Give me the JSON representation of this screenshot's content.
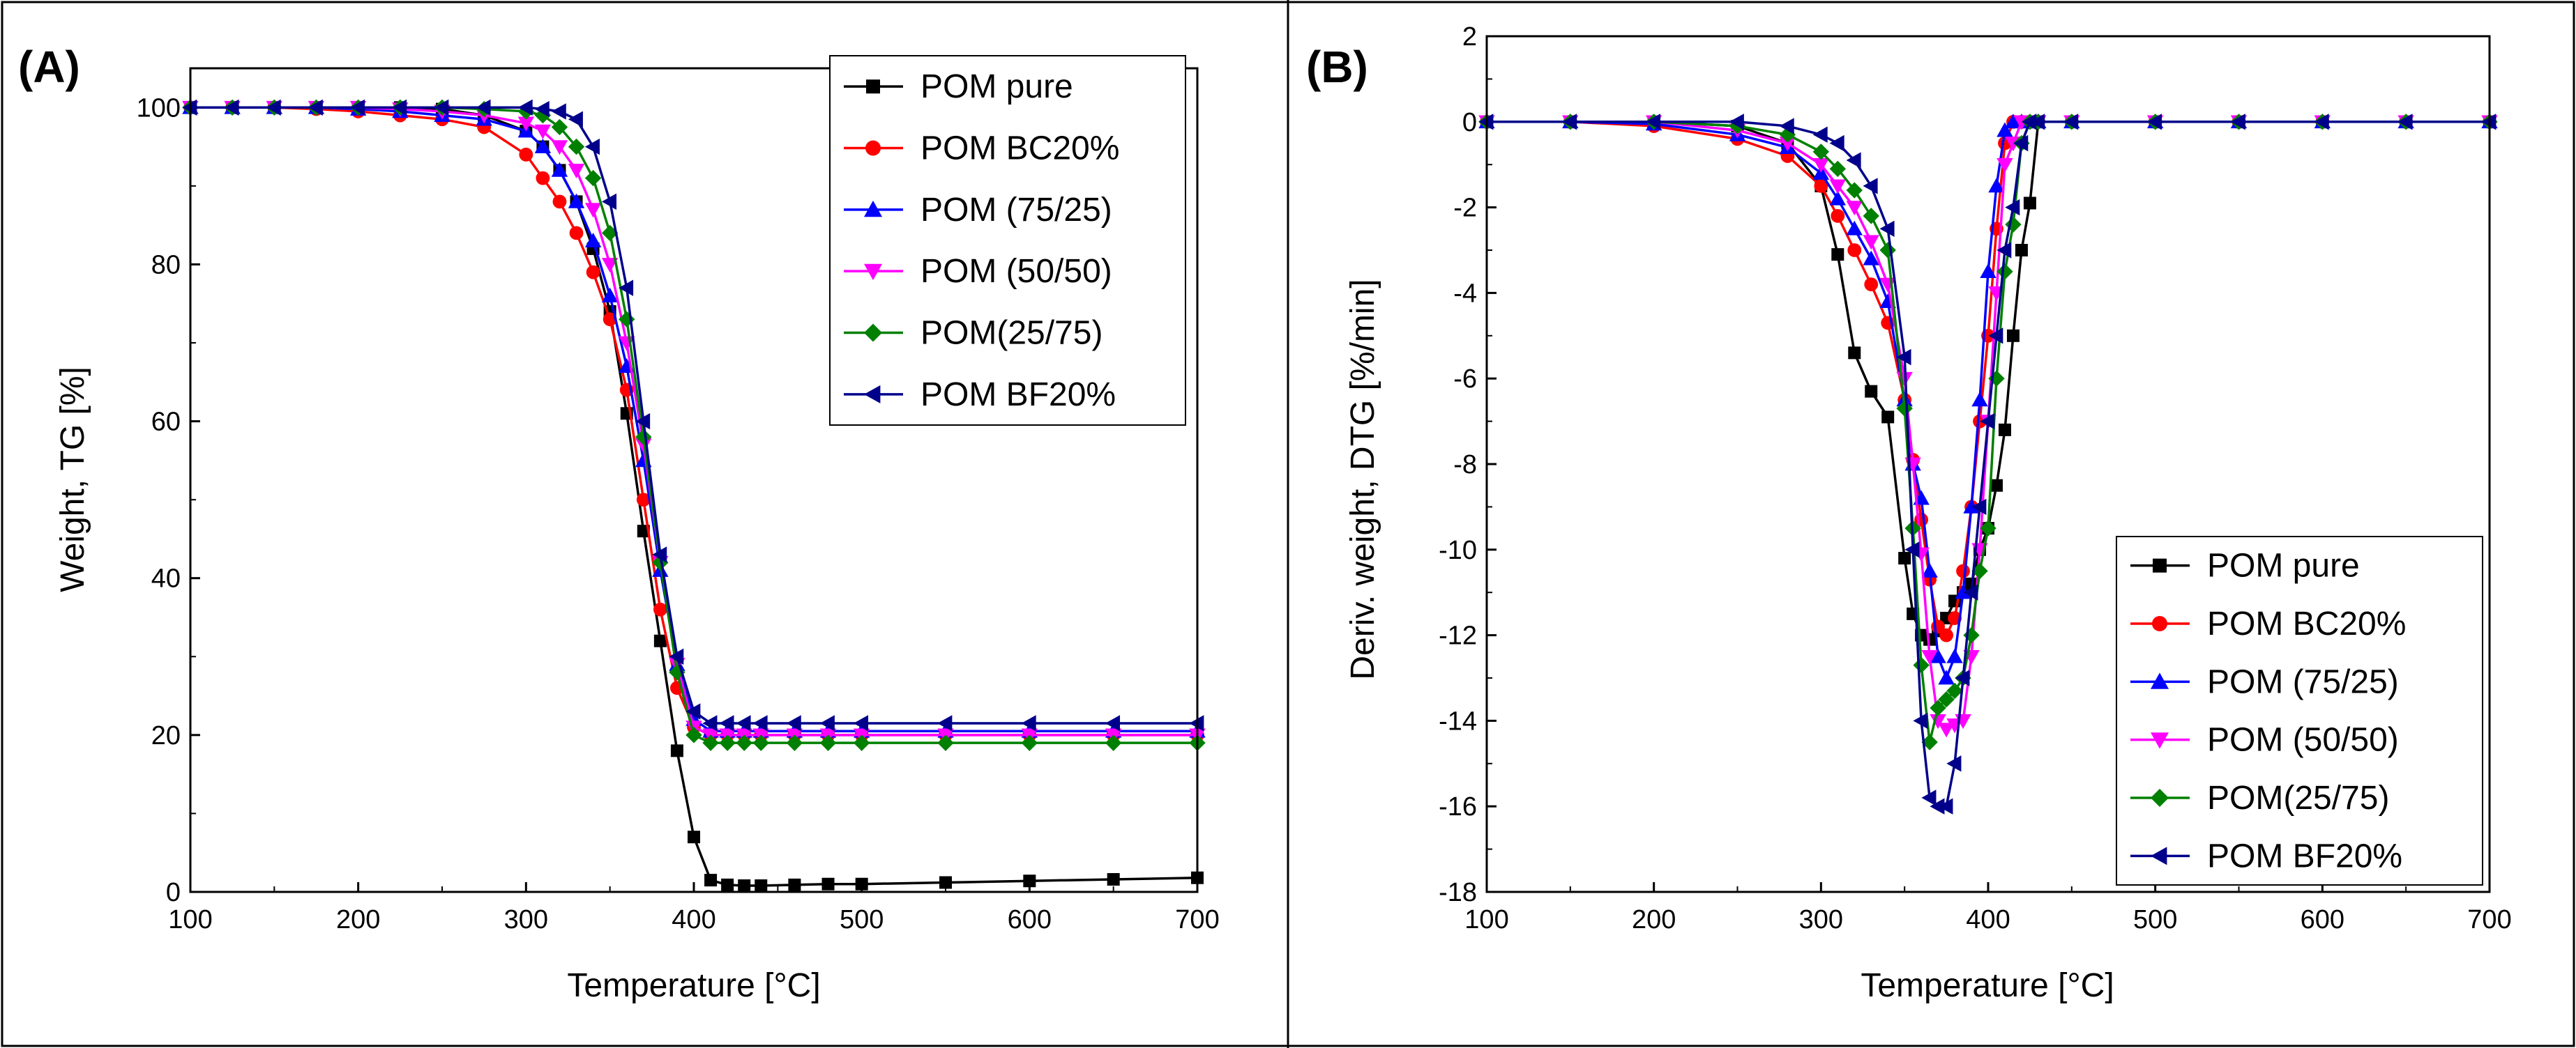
{
  "chart_data": [
    {
      "panel_label": "(A)",
      "type": "line",
      "xlabel": "Temperature [°C]",
      "ylabel": "Weight, TG [%]",
      "xlim": [
        100,
        700
      ],
      "ylim": [
        0,
        105
      ],
      "xticks": [
        100,
        200,
        300,
        400,
        500,
        600,
        700
      ],
      "yticks": [
        0,
        20,
        40,
        60,
        80,
        100
      ],
      "legend_position": "top-right",
      "x": [
        100,
        125,
        150,
        175,
        200,
        225,
        250,
        275,
        300,
        310,
        320,
        330,
        340,
        350,
        360,
        370,
        380,
        390,
        400,
        410,
        420,
        430,
        440,
        460,
        480,
        500,
        550,
        600,
        650,
        700
      ],
      "series": [
        {
          "name": "POM pure",
          "color": "#000000",
          "marker": "square",
          "values": [
            100,
            100,
            100,
            100,
            100,
            100,
            99.8,
            99,
            97,
            95,
            92,
            88,
            82,
            74,
            61,
            46,
            32,
            18,
            7,
            1.5,
            0.9,
            0.8,
            0.8,
            0.9,
            1.0,
            1.0,
            1.2,
            1.4,
            1.6,
            1.8
          ]
        },
        {
          "name": "POM BC20%",
          "color": "#ff0000",
          "marker": "circle",
          "values": [
            100,
            100,
            100,
            99.8,
            99.5,
            99,
            98.5,
            97.5,
            94,
            91,
            88,
            84,
            79,
            73,
            64,
            50,
            36,
            26,
            21,
            20,
            20,
            20,
            20,
            20,
            20,
            20,
            20,
            20,
            20,
            20
          ]
        },
        {
          "name": "POM (75/25)",
          "color": "#0000ff",
          "marker": "triangle-up",
          "values": [
            100,
            100,
            100,
            100,
            99.8,
            99.5,
            99,
            98.5,
            97,
            95,
            92,
            88,
            83,
            76,
            67,
            55,
            41,
            29,
            22,
            20.5,
            20.5,
            20.5,
            20.5,
            20.5,
            20.5,
            20.5,
            20.5,
            20.5,
            20.5,
            20.5
          ]
        },
        {
          "name": "POM (50/50)",
          "color": "#ff00ff",
          "marker": "triangle-down",
          "values": [
            100,
            100,
            100,
            100,
            100,
            99.8,
            99.5,
            99,
            98,
            97,
            95,
            92,
            87,
            80,
            70,
            57,
            42,
            29,
            21,
            20,
            20,
            20,
            20,
            20,
            20,
            20,
            20,
            20,
            20,
            20
          ]
        },
        {
          "name": "POM(25/75)",
          "color": "#008000",
          "marker": "diamond",
          "values": [
            100,
            100,
            100,
            100,
            100,
            100,
            100,
            99.8,
            99.5,
            99,
            97.5,
            95,
            91,
            84,
            73,
            58,
            42,
            28,
            20,
            19,
            19,
            19,
            19,
            19,
            19,
            19,
            19,
            19,
            19,
            19
          ]
        },
        {
          "name": "POM BF20%",
          "color": "#00008b",
          "marker": "triangle-left",
          "values": [
            100,
            100,
            100,
            100,
            100,
            100,
            100,
            100,
            100,
            99.8,
            99.5,
            98.5,
            95,
            88,
            77,
            60,
            43,
            30,
            23,
            21.5,
            21.5,
            21.5,
            21.5,
            21.5,
            21.5,
            21.5,
            21.5,
            21.5,
            21.5,
            21.5
          ]
        }
      ]
    },
    {
      "panel_label": "(B)",
      "type": "line",
      "xlabel": "Temperature [°C]",
      "ylabel": "Deriv. weight, DTG [%/min]",
      "xlim": [
        100,
        700
      ],
      "ylim": [
        -18,
        2
      ],
      "xticks": [
        100,
        200,
        300,
        400,
        500,
        600,
        700
      ],
      "yticks": [
        -18,
        -16,
        -14,
        -12,
        -10,
        -8,
        -6,
        -4,
        -2,
        0,
        2
      ],
      "legend_position": "bottom-right",
      "x": [
        100,
        150,
        200,
        250,
        280,
        300,
        310,
        320,
        330,
        340,
        350,
        355,
        360,
        365,
        370,
        375,
        380,
        385,
        390,
        395,
        400,
        405,
        410,
        415,
        420,
        425,
        430,
        450,
        500,
        550,
        600,
        650,
        700
      ],
      "series": [
        {
          "name": "POM pure",
          "color": "#000000",
          "marker": "square",
          "values": [
            0,
            0,
            0,
            -0.1,
            -0.5,
            -1.5,
            -3.1,
            -5.4,
            -6.3,
            -6.9,
            -10.2,
            -11.5,
            -12.0,
            -12.1,
            -11.9,
            -11.6,
            -11.2,
            -11.0,
            -10.8,
            -10.0,
            -9.5,
            -8.5,
            -7.2,
            -5.0,
            -3.0,
            -1.9,
            0,
            0,
            0,
            0,
            0,
            0,
            0
          ]
        },
        {
          "name": "POM BC20%",
          "color": "#ff0000",
          "marker": "circle",
          "values": [
            0,
            0,
            -0.1,
            -0.4,
            -0.8,
            -1.5,
            -2.2,
            -3.0,
            -3.8,
            -4.7,
            -6.5,
            -7.9,
            -9.3,
            -10.7,
            -11.8,
            -12.0,
            -11.6,
            -10.5,
            -9.0,
            -7.0,
            -5.0,
            -2.5,
            -0.5,
            0,
            0,
            0,
            0,
            0,
            0,
            0,
            0,
            0,
            0
          ]
        },
        {
          "name": "POM (75/25)",
          "color": "#0000ff",
          "marker": "triangle-up",
          "values": [
            0,
            0,
            -0.05,
            -0.3,
            -0.6,
            -1.2,
            -1.8,
            -2.5,
            -3.2,
            -4.2,
            -6.5,
            -8.0,
            -8.8,
            -10.5,
            -12.5,
            -13.0,
            -12.5,
            -11.0,
            -9.0,
            -6.5,
            -3.5,
            -1.5,
            -0.2,
            0,
            0,
            0,
            0,
            0,
            0,
            0,
            0,
            0,
            0
          ]
        },
        {
          "name": "POM (50/50)",
          "color": "#ff00ff",
          "marker": "triangle-down",
          "values": [
            0,
            0,
            0,
            -0.2,
            -0.5,
            -1.0,
            -1.5,
            -2.0,
            -2.8,
            -3.8,
            -6.0,
            -8.0,
            -10.1,
            -12.5,
            -14.0,
            -14.2,
            -14.1,
            -14.0,
            -12.5,
            -10.0,
            -7.0,
            -4.0,
            -1.0,
            -0.5,
            0,
            0,
            0,
            0,
            0,
            0,
            0,
            0,
            0
          ]
        },
        {
          "name": "POM(25/75)",
          "color": "#008000",
          "marker": "diamond",
          "values": [
            0,
            0,
            0,
            -0.1,
            -0.3,
            -0.7,
            -1.1,
            -1.6,
            -2.2,
            -3.0,
            -6.7,
            -9.5,
            -12.7,
            -14.5,
            -13.7,
            -13.5,
            -13.3,
            -13.0,
            -12.0,
            -10.5,
            -9.5,
            -6.0,
            -3.5,
            -2.4,
            -0.5,
            0,
            0,
            0,
            0,
            0,
            0,
            0,
            0
          ]
        },
        {
          "name": "POM BF20%",
          "color": "#00008b",
          "marker": "triangle-left",
          "values": [
            0,
            0,
            0,
            0,
            -0.1,
            -0.3,
            -0.5,
            -0.9,
            -1.5,
            -2.5,
            -5.5,
            -10.0,
            -14.0,
            -15.8,
            -16.0,
            -16.0,
            -15.0,
            -13.0,
            -11.0,
            -9.0,
            -7.0,
            -5.0,
            -3.0,
            -2.0,
            -0.5,
            0,
            0,
            0,
            0,
            0,
            0,
            0,
            0
          ]
        }
      ]
    }
  ]
}
